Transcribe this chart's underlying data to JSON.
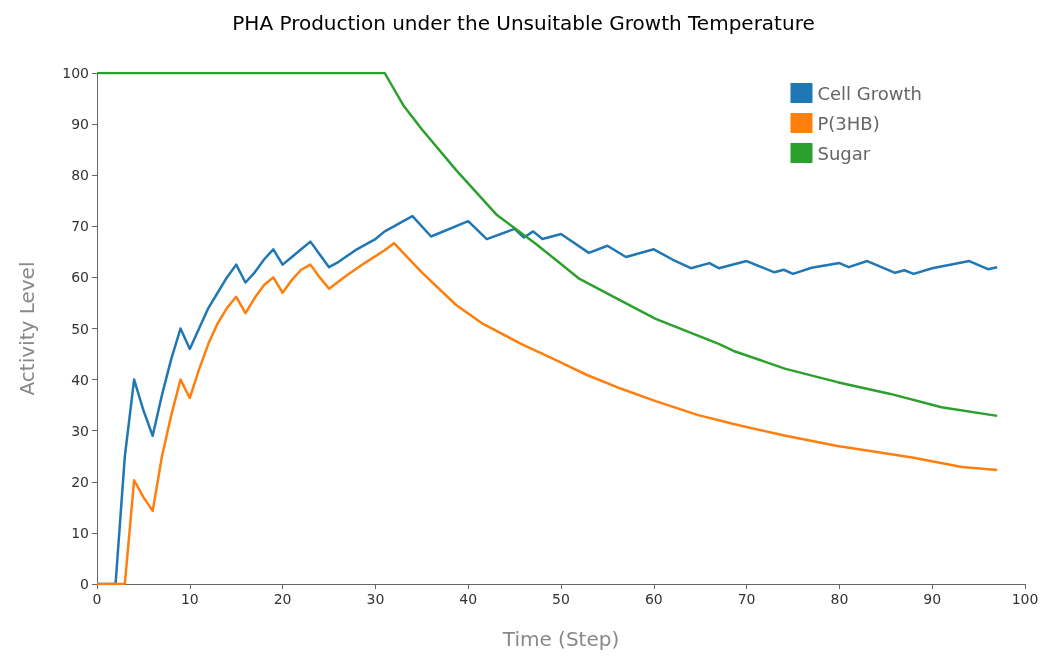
{
  "chart_data": {
    "type": "line",
    "title": "PHA Production under the Unsuitable Growth Temperature",
    "xlabel": "Time (Step)",
    "ylabel": "Activity Level",
    "xlim": [
      0,
      100
    ],
    "xticks": [
      0,
      10,
      20,
      30,
      40,
      50,
      60,
      70,
      80,
      90,
      100
    ],
    "ylim": [
      0,
      100
    ],
    "yticks": [
      0,
      10,
      20,
      30,
      40,
      50,
      60,
      70,
      80,
      90,
      100
    ],
    "grid": false,
    "legend": "top right",
    "marker": "none",
    "line_style": "solid",
    "series": [
      {
        "name": "Cell Growth",
        "color": "#1f77b4",
        "x": [
          0,
          2,
          3,
          4,
          5,
          6,
          7,
          8,
          9,
          10,
          11,
          12,
          13,
          14,
          15,
          16,
          17,
          18,
          19,
          20,
          21,
          22,
          23,
          24,
          25,
          26,
          28,
          30,
          31,
          32,
          33,
          34,
          36,
          40,
          42,
          45,
          46,
          47,
          48,
          50,
          53,
          55,
          57,
          60,
          62,
          64,
          66,
          67,
          70,
          73,
          74,
          75,
          77,
          80,
          81,
          83,
          86,
          87,
          88,
          90,
          94,
          96,
          97
        ],
        "values": [
          0,
          0,
          25,
          40,
          34,
          29,
          37,
          44,
          50,
          46,
          50,
          54,
          57,
          60,
          62.5,
          59,
          61,
          63.5,
          65.5,
          62.5,
          64,
          65.5,
          67,
          64.5,
          62,
          63,
          65.5,
          67.5,
          69,
          70,
          71,
          72,
          68,
          71,
          67.5,
          69.5,
          67.8,
          69,
          67.5,
          68.5,
          64.8,
          66.2,
          64,
          65.5,
          63.5,
          61.8,
          62.8,
          61.8,
          63.2,
          61,
          61.5,
          60.7,
          61.9,
          62.8,
          62,
          63.2,
          60.9,
          61.4,
          60.7,
          61.8,
          63.2,
          61.6,
          62
        ]
      },
      {
        "name": "P(3HB)",
        "color": "#ff7f0e",
        "x": [
          0,
          3,
          4,
          5,
          6,
          7,
          8,
          9,
          10,
          11,
          12,
          13,
          14,
          15,
          16,
          17,
          18,
          19,
          20,
          21,
          22,
          23,
          24,
          25,
          27,
          29,
          31,
          32,
          35,
          38.7,
          41.6,
          45.7,
          49.8,
          52.8,
          56.5,
          60.2,
          64.7,
          68.6,
          74.2,
          79.8,
          83.5,
          88,
          93.2,
          97
        ],
        "values": [
          0,
          0,
          20.3,
          17,
          14.3,
          25,
          33,
          40,
          36.4,
          42,
          47,
          51,
          54,
          56.2,
          53,
          56,
          58.5,
          60,
          57,
          59.5,
          61.5,
          62.5,
          60,
          57.8,
          60.5,
          63,
          65.3,
          66.7,
          61,
          54.6,
          50.9,
          47,
          43.5,
          40.9,
          38.2,
          35.8,
          33.1,
          31.3,
          29,
          27,
          26,
          24.7,
          22.9,
          22.3
        ]
      },
      {
        "name": "Sugar",
        "color": "#2ca02c",
        "x": [
          0,
          31,
          33,
          35,
          38.7,
          43.1,
          47.2,
          52,
          56.5,
          60.2,
          67,
          68.6,
          74.2,
          79.8,
          85.5,
          91,
          97
        ],
        "values": [
          100,
          100,
          93.7,
          89,
          81,
          72.2,
          66.7,
          59.7,
          55.4,
          51.9,
          47,
          45.6,
          42.1,
          39.5,
          37.2,
          34.6,
          32.9
        ]
      }
    ]
  }
}
